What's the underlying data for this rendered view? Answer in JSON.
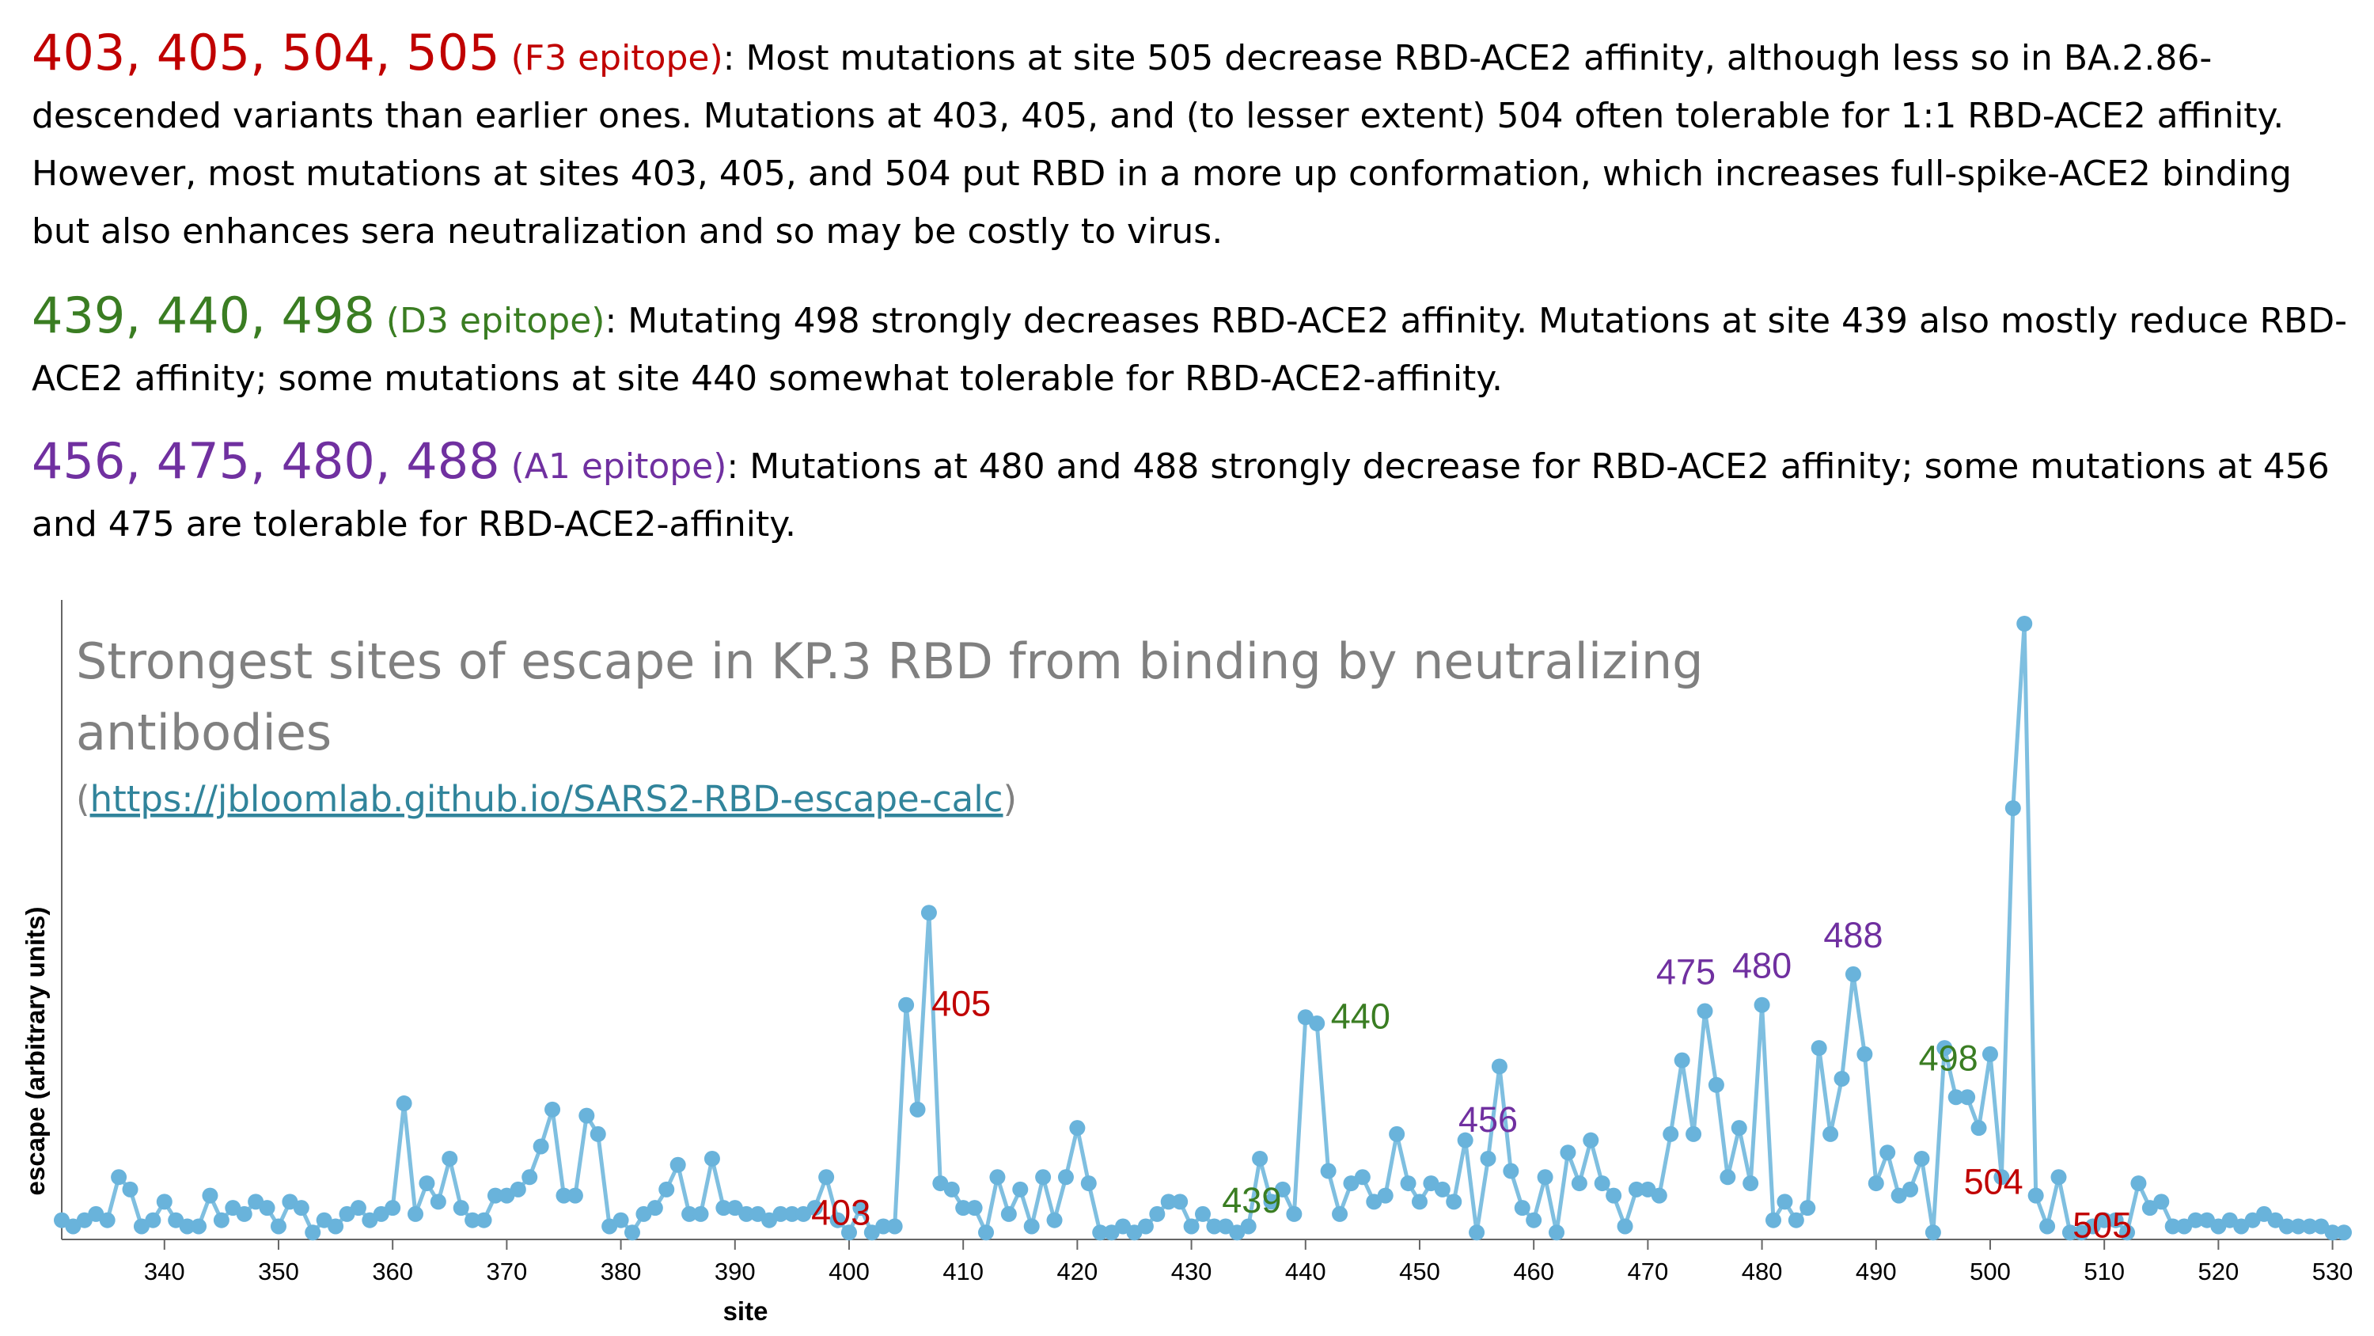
{
  "paragraphs": [
    {
      "sites": "403, 405, 504, 505",
      "epitope": "(F3 epitope)",
      "text": ": Most mutations at site 505 decrease RBD-ACE2 affinity, although less so in BA.2.86-descended variants than earlier ones. Mutations at 403, 405, and (to lesser extent) 504 often tolerable for 1:1 RBD-ACE2 affinity. However, most mutations at sites 403, 405, and 504 put RBD in a more up conformation, which increases full-spike-ACE2 binding but also enhances sera neutralization and so may be costly to virus."
    },
    {
      "sites": "439, 440, 498",
      "epitope": "(D3 epitope)",
      "text": ": Mutating 498 strongly decreases RBD-ACE2 affinity. Mutations at site 439 also mostly reduce RBD-ACE2 affinity; some mutations at site 440 somewhat tolerable for RBD-ACE2-affinity."
    },
    {
      "sites": "456, 475, 480, 488",
      "epitope": "(A1 epitope)",
      "text": ": Mutations at 480 and 488 strongly decrease for RBD-ACE2 affinity; some mutations at 456 and 475 are tolerable for RBD-ACE2-affinity."
    }
  ],
  "colors": {
    "F3": "#c00000",
    "D3": "#3a7d22",
    "A1": "#7030a0",
    "line": "#7fbfe0",
    "point": "#69b3db",
    "title": "#808080",
    "link": "#31849b"
  },
  "chart_data": {
    "type": "line",
    "title": "Strongest sites of escape in KP.3 RBD from binding by neutralizing antibodies",
    "title_link_prefix": "(",
    "title_link": "https://jbloomlab.github.io/SARS2-RBD-escape-calc",
    "title_link_suffix": ")",
    "xlabel": "site",
    "ylabel": "escape (arbitrary units)",
    "xlim": [
      331,
      531
    ],
    "ylim": [
      0,
      1.0
    ],
    "y_ticks_shown": false,
    "grid": false,
    "x_ticks": [
      340,
      350,
      360,
      370,
      380,
      390,
      400,
      410,
      420,
      430,
      440,
      450,
      460,
      470,
      480,
      490,
      500,
      510,
      520,
      530
    ],
    "x": [
      331,
      332,
      333,
      334,
      335,
      336,
      337,
      338,
      339,
      340,
      341,
      342,
      343,
      344,
      345,
      346,
      347,
      348,
      349,
      350,
      351,
      352,
      353,
      354,
      355,
      356,
      357,
      358,
      359,
      360,
      361,
      362,
      363,
      364,
      365,
      366,
      367,
      368,
      369,
      370,
      371,
      372,
      373,
      374,
      375,
      376,
      377,
      378,
      379,
      380,
      381,
      382,
      383,
      384,
      385,
      386,
      387,
      388,
      389,
      390,
      391,
      392,
      393,
      394,
      395,
      396,
      397,
      398,
      399,
      400,
      401,
      402,
      403,
      404,
      405,
      406,
      407,
      408,
      409,
      410,
      411,
      412,
      413,
      414,
      415,
      416,
      417,
      418,
      419,
      420,
      421,
      422,
      423,
      424,
      425,
      426,
      427,
      428,
      429,
      430,
      431,
      432,
      433,
      434,
      435,
      436,
      437,
      438,
      439,
      440,
      441,
      442,
      443,
      444,
      445,
      446,
      447,
      448,
      449,
      450,
      451,
      452,
      453,
      454,
      455,
      456,
      457,
      458,
      459,
      460,
      461,
      462,
      463,
      464,
      465,
      466,
      467,
      468,
      469,
      470,
      471,
      472,
      473,
      474,
      475,
      476,
      477,
      478,
      479,
      480,
      481,
      482,
      483,
      484,
      485,
      486,
      487,
      488,
      489,
      490,
      491,
      492,
      493,
      494,
      495,
      496,
      497,
      498,
      499,
      500,
      501,
      502,
      503,
      504,
      505,
      506,
      507,
      508,
      509,
      510,
      511,
      512,
      513,
      514,
      515,
      516,
      517,
      518,
      519,
      520,
      521,
      522,
      523,
      524,
      525,
      526,
      527,
      528,
      529,
      530,
      531
    ],
    "y": [
      0.03,
      0.02,
      0.03,
      0.04,
      0.03,
      0.1,
      0.08,
      0.02,
      0.03,
      0.06,
      0.03,
      0.02,
      0.02,
      0.07,
      0.03,
      0.05,
      0.04,
      0.06,
      0.05,
      0.02,
      0.06,
      0.05,
      0.01,
      0.03,
      0.02,
      0.04,
      0.05,
      0.03,
      0.04,
      0.05,
      0.22,
      0.04,
      0.09,
      0.06,
      0.13,
      0.05,
      0.03,
      0.03,
      0.07,
      0.07,
      0.08,
      0.1,
      0.15,
      0.21,
      0.07,
      0.07,
      0.2,
      0.17,
      0.02,
      0.03,
      0.01,
      0.04,
      0.05,
      0.08,
      0.12,
      0.04,
      0.04,
      0.13,
      0.05,
      0.05,
      0.04,
      0.04,
      0.03,
      0.04,
      0.04,
      0.04,
      0.05,
      0.1,
      0.03,
      0.01,
      0.05,
      0.01,
      0.02,
      0.02,
      0.38,
      0.21,
      0.53,
      0.09,
      0.08,
      0.05,
      0.05,
      0.01,
      0.1,
      0.04,
      0.08,
      0.02,
      0.1,
      0.03,
      0.1,
      0.18,
      0.09,
      0.01,
      0.01,
      0.02,
      0.01,
      0.02,
      0.04,
      0.06,
      0.06,
      0.02,
      0.04,
      0.02,
      0.02,
      0.01,
      0.02,
      0.13,
      0.06,
      0.08,
      0.04,
      0.36,
      0.35,
      0.11,
      0.04,
      0.09,
      0.1,
      0.06,
      0.07,
      0.17,
      0.09,
      0.06,
      0.09,
      0.08,
      0.06,
      0.16,
      0.01,
      0.13,
      0.28,
      0.11,
      0.05,
      0.03,
      0.1,
      0.01,
      0.14,
      0.09,
      0.16,
      0.09,
      0.07,
      0.02,
      0.08,
      0.08,
      0.07,
      0.17,
      0.29,
      0.17,
      0.37,
      0.25,
      0.1,
      0.18,
      0.09,
      0.38,
      0.03,
      0.06,
      0.03,
      0.05,
      0.31,
      0.17,
      0.26,
      0.43,
      0.3,
      0.09,
      0.14,
      0.07,
      0.08,
      0.13,
      0.01,
      0.31,
      0.23,
      0.23,
      0.18,
      0.3,
      0.1,
      0.7,
      1.0,
      0.07,
      0.02,
      0.1,
      0.01,
      0.01,
      0.02,
      0.03,
      0.03,
      0.01,
      0.09,
      0.05,
      0.06,
      0.02,
      0.02,
      0.03,
      0.03,
      0.02,
      0.03,
      0.02,
      0.03,
      0.04,
      0.03,
      0.02,
      0.02,
      0.02,
      0.02,
      0.01,
      0.01
    ],
    "annotations": [
      {
        "site": 403,
        "label": "403",
        "epitope": "F3",
        "side": "left"
      },
      {
        "site": 405,
        "label": "405",
        "epitope": "F3",
        "side": "right"
      },
      {
        "site": 439,
        "label": "439",
        "epitope": "D3",
        "side": "left"
      },
      {
        "site": 440,
        "label": "440",
        "epitope": "D3",
        "side": "right"
      },
      {
        "site": 456,
        "label": "456",
        "epitope": "A1",
        "side": "above"
      },
      {
        "site": 475,
        "label": "475",
        "epitope": "A1",
        "side": "above-left"
      },
      {
        "site": 480,
        "label": "480",
        "epitope": "A1",
        "side": "above"
      },
      {
        "site": 488,
        "label": "488",
        "epitope": "A1",
        "side": "above"
      },
      {
        "site": 498,
        "label": "498",
        "epitope": "D3",
        "side": "above-left"
      },
      {
        "site": 504,
        "label": "504",
        "epitope": "F3",
        "side": "left"
      },
      {
        "site": 505,
        "label": "505",
        "epitope": "F3",
        "side": "right"
      }
    ]
  }
}
